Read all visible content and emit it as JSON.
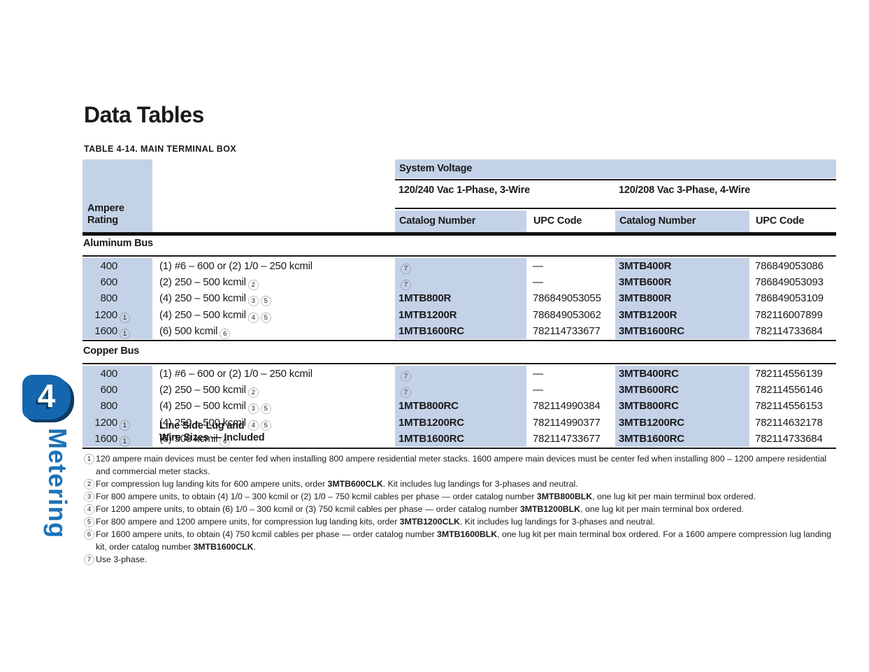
{
  "page": {
    "title": "Data Tables",
    "table_caption": "TABLE 4-14. MAIN TERMINAL BOX"
  },
  "chapter_tab": {
    "number": "4",
    "label": "Metering"
  },
  "colors": {
    "table_header_blue": "#c4d2e7",
    "tab_blue": "#1467ae",
    "tab_shadow_navy": "#0d3a63",
    "chapter_label_blue": "#1b72b8"
  },
  "table": {
    "header": {
      "ampere_line1": "Ampere",
      "ampere_line2": "Rating",
      "lineside_line1": "Line Side Lug and",
      "lineside_line2": "Wire Sizes — Included",
      "system_voltage": "System Voltage",
      "group_1phase": "120/240 Vac 1-Phase, 3-Wire",
      "group_3phase": "120/208 Vac 3-Phase, 4-Wire",
      "catalog_number": "Catalog Number",
      "upc_code": "UPC Code"
    },
    "sections": [
      {
        "name": "Aluminum Bus",
        "rows": [
          {
            "ampere": "400",
            "ampere_note": "",
            "lineside": "(1) #6 – 600 or (2) 1/0 – 250 kcmil",
            "lineside_notes": [],
            "cat1": "",
            "cat1_note": "7",
            "upc1": "—",
            "cat2": "3MTB400R",
            "upc2": "786849053086"
          },
          {
            "ampere": "600",
            "ampere_note": "",
            "lineside": "(2) 250 – 500 kcmil",
            "lineside_notes": [
              "2"
            ],
            "cat1": "",
            "cat1_note": "7",
            "upc1": "—",
            "cat2": "3MTB600R",
            "upc2": "786849053093"
          },
          {
            "ampere": "800",
            "ampere_note": "",
            "lineside": "(4) 250 – 500 kcmil",
            "lineside_notes": [
              "3",
              "5"
            ],
            "cat1": "1MTB800R",
            "cat1_note": "",
            "upc1": "786849053055",
            "cat2": "3MTB800R",
            "upc2": "786849053109"
          },
          {
            "ampere": "1200",
            "ampere_note": "1",
            "lineside": "(4) 250 – 500 kcmil",
            "lineside_notes": [
              "4",
              "5"
            ],
            "cat1": "1MTB1200R",
            "cat1_note": "",
            "upc1": "786849053062",
            "cat2": "3MTB1200R",
            "upc2": "782116007899"
          },
          {
            "ampere": "1600",
            "ampere_note": "1",
            "lineside": "(6) 500 kcmil",
            "lineside_notes": [
              "6"
            ],
            "cat1": "1MTB1600RC",
            "cat1_note": "",
            "upc1": "782114733677",
            "cat2": "3MTB1600RC",
            "upc2": "782114733684"
          }
        ]
      },
      {
        "name": "Copper Bus",
        "rows": [
          {
            "ampere": "400",
            "ampere_note": "",
            "lineside": "(1) #6 – 600 or (2) 1/0 – 250 kcmil",
            "lineside_notes": [],
            "cat1": "",
            "cat1_note": "7",
            "upc1": "—",
            "cat2": "3MTB400RC",
            "upc2": "782114556139"
          },
          {
            "ampere": "600",
            "ampere_note": "",
            "lineside": "(2) 250 – 500 kcmil",
            "lineside_notes": [
              "2"
            ],
            "cat1": "",
            "cat1_note": "7",
            "upc1": "—",
            "cat2": "3MTB600RC",
            "upc2": "782114556146"
          },
          {
            "ampere": "800",
            "ampere_note": "",
            "lineside": "(4) 250 – 500 kcmil",
            "lineside_notes": [
              "3",
              "5"
            ],
            "cat1": "1MTB800RC",
            "cat1_note": "",
            "upc1": "782114990384",
            "cat2": "3MTB800RC",
            "upc2": "782114556153"
          },
          {
            "ampere": "1200",
            "ampere_note": "1",
            "lineside": "(4) 250 – 500 kcmil",
            "lineside_notes": [
              "4",
              "5"
            ],
            "cat1": "1MTB1200RC",
            "cat1_note": "",
            "upc1": "782114990377",
            "cat2": "3MTB1200RC",
            "upc2": "782114632178"
          },
          {
            "ampere": "1600",
            "ampere_note": "1",
            "lineside": "(6) 500 kcmil",
            "lineside_notes": [
              "6"
            ],
            "cat1": "1MTB1600RC",
            "cat1_note": "",
            "upc1": "782114733677",
            "cat2": "3MTB1600RC",
            "upc2": "782114733684"
          }
        ]
      }
    ]
  },
  "footnotes": [
    {
      "marker": "1",
      "segments": [
        {
          "t": "120 ampere main devices must be center fed when installing 800 ampere residential meter stacks. 1600 ampere main devices must be center fed when installing 800 – 1200 ampere residential and commercial meter stacks.",
          "b": false
        }
      ]
    },
    {
      "marker": "2",
      "segments": [
        {
          "t": "For compression lug landing kits for 600 ampere units, order ",
          "b": false
        },
        {
          "t": "3MTB600CLK",
          "b": true
        },
        {
          "t": ". Kit includes lug landings for 3-phases and neutral.",
          "b": false
        }
      ]
    },
    {
      "marker": "3",
      "segments": [
        {
          "t": "For 800 ampere units, to obtain (4) 1/0 – 300 kcmil or (2) 1/0 – 750 kcmil cables per phase — order catalog number ",
          "b": false
        },
        {
          "t": "3MTB800BLK",
          "b": true
        },
        {
          "t": ", one lug kit per main terminal box ordered.",
          "b": false
        }
      ]
    },
    {
      "marker": "4",
      "segments": [
        {
          "t": "For 1200 ampere units, to obtain (6) 1/0 – 300 kcmil or (3) 750 kcmil cables per phase — order catalog number ",
          "b": false
        },
        {
          "t": "3MTB1200BLK",
          "b": true
        },
        {
          "t": ", one lug kit per main terminal box ordered.",
          "b": false
        }
      ]
    },
    {
      "marker": "5",
      "segments": [
        {
          "t": "For 800 ampere and 1200 ampere units, for compression lug landing kits, order ",
          "b": false
        },
        {
          "t": "3MTB1200CLK",
          "b": true
        },
        {
          "t": ". Kit includes lug landings for 3-phases and neutral.",
          "b": false
        }
      ]
    },
    {
      "marker": "6",
      "segments": [
        {
          "t": "For 1600 ampere units, to obtain (4) 750 kcmil cables per phase — order catalog number ",
          "b": false
        },
        {
          "t": "3MTB1600BLK",
          "b": true
        },
        {
          "t": ", one lug kit per main terminal box ordered. For a 1600 ampere compression lug landing kit, order catalog number ",
          "b": false
        },
        {
          "t": "3MTB1600CLK",
          "b": true
        },
        {
          "t": ".",
          "b": false
        }
      ]
    },
    {
      "marker": "7",
      "segments": [
        {
          "t": "Use 3-phase.",
          "b": false
        }
      ]
    }
  ]
}
